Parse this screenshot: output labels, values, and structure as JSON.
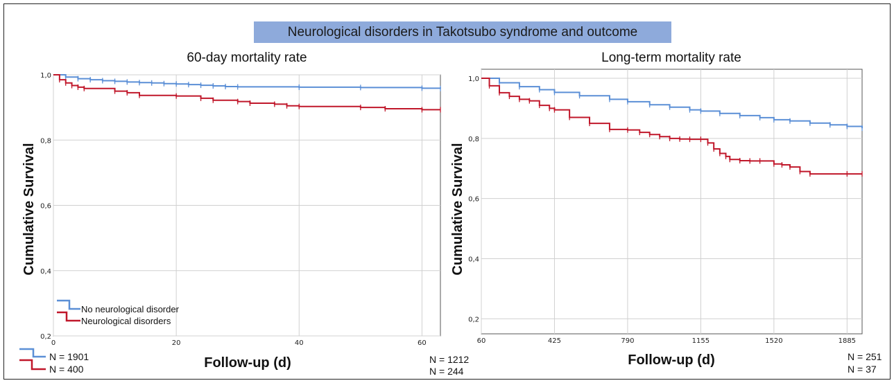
{
  "banner": "Neurological disorders in Takotsubo syndrome and outcome",
  "colors": {
    "no_neuro": "#5b8fd6",
    "neuro": "#c0172a",
    "grid": "#d0d0d0"
  },
  "legend_placement": "bottom-left",
  "chart_data": [
    {
      "type": "line",
      "title": "60-day mortality rate",
      "ylabel": "Cumulative Survival",
      "xlabel": "Follow-up (d)",
      "xlim": [
        0,
        63
      ],
      "ylim": [
        0.2,
        1.0
      ],
      "xticks": [
        0,
        20,
        40,
        60
      ],
      "xtick_labels": [
        "0",
        "20",
        "40",
        "60"
      ],
      "yticks": [
        0.2,
        0.4,
        0.6,
        0.8,
        1.0
      ],
      "ytick_labels": [
        "0,2",
        "0,4",
        "0,6",
        "0,8",
        "1,0"
      ],
      "grid": true,
      "legend": [
        "No neurological disorder",
        "Neurological disorders"
      ],
      "n_at_risk": {
        "start": [
          "N = 1901",
          "N = 400"
        ],
        "end": [
          "N = 1212",
          "N = 244"
        ]
      },
      "series": [
        {
          "name": "No neurological disorder",
          "color": "#5b8fd6",
          "x": [
            0,
            2,
            4,
            6,
            8,
            10,
            12,
            14,
            16,
            18,
            20,
            22,
            24,
            26,
            28,
            30,
            40,
            50,
            60,
            63
          ],
          "y": [
            1.0,
            0.993,
            0.988,
            0.985,
            0.982,
            0.98,
            0.978,
            0.976,
            0.975,
            0.973,
            0.972,
            0.97,
            0.968,
            0.966,
            0.964,
            0.963,
            0.962,
            0.961,
            0.959,
            0.958
          ]
        },
        {
          "name": "Neurological disorders",
          "color": "#c0172a",
          "x": [
            0,
            1,
            2,
            3,
            4,
            5,
            10,
            12,
            14,
            20,
            24,
            26,
            30,
            32,
            36,
            38,
            40,
            50,
            54,
            60,
            63
          ],
          "y": [
            1.0,
            0.985,
            0.975,
            0.967,
            0.962,
            0.958,
            0.95,
            0.945,
            0.937,
            0.935,
            0.928,
            0.922,
            0.918,
            0.913,
            0.91,
            0.905,
            0.903,
            0.9,
            0.896,
            0.893,
            0.893
          ]
        }
      ]
    },
    {
      "type": "line",
      "title": "Long-term mortality rate",
      "ylabel": "Cumulative Survival",
      "xlabel": "Follow-up (d)",
      "xlim": [
        60,
        1960
      ],
      "ylim": [
        0.15,
        1.03
      ],
      "xticks": [
        60,
        425,
        790,
        1155,
        1520,
        1885
      ],
      "xtick_labels": [
        "60",
        "425",
        "790",
        "1155",
        "1520",
        "1885"
      ],
      "yticks": [
        0.2,
        0.4,
        0.6,
        0.8,
        1.0
      ],
      "ytick_labels": [
        "0,2",
        "0,4",
        "0,6",
        "0,8",
        "1,0"
      ],
      "grid": true,
      "n_at_risk": {
        "end": [
          "N = 251",
          "N = 37"
        ]
      },
      "series": [
        {
          "name": "No neurological disorder",
          "color": "#5b8fd6",
          "x": [
            60,
            150,
            250,
            350,
            425,
            550,
            700,
            790,
            900,
            1000,
            1100,
            1155,
            1250,
            1350,
            1450,
            1520,
            1600,
            1700,
            1800,
            1885,
            1960
          ],
          "y": [
            1.0,
            0.985,
            0.972,
            0.962,
            0.953,
            0.942,
            0.93,
            0.922,
            0.912,
            0.904,
            0.895,
            0.891,
            0.883,
            0.876,
            0.869,
            0.862,
            0.858,
            0.851,
            0.845,
            0.84,
            0.834
          ]
        },
        {
          "name": "Neurological disorders",
          "color": "#c0172a",
          "x": [
            60,
            100,
            150,
            200,
            250,
            300,
            350,
            400,
            425,
            500,
            600,
            700,
            790,
            850,
            900,
            950,
            1000,
            1050,
            1100,
            1155,
            1190,
            1220,
            1250,
            1280,
            1300,
            1350,
            1400,
            1450,
            1520,
            1560,
            1600,
            1650,
            1700,
            1885,
            1960
          ],
          "y": [
            1.0,
            0.975,
            0.952,
            0.94,
            0.93,
            0.925,
            0.91,
            0.9,
            0.895,
            0.87,
            0.85,
            0.83,
            0.828,
            0.82,
            0.813,
            0.806,
            0.8,
            0.798,
            0.797,
            0.797,
            0.785,
            0.765,
            0.75,
            0.74,
            0.73,
            0.726,
            0.725,
            0.725,
            0.715,
            0.712,
            0.705,
            0.69,
            0.682,
            0.682,
            0.682
          ]
        }
      ]
    }
  ]
}
